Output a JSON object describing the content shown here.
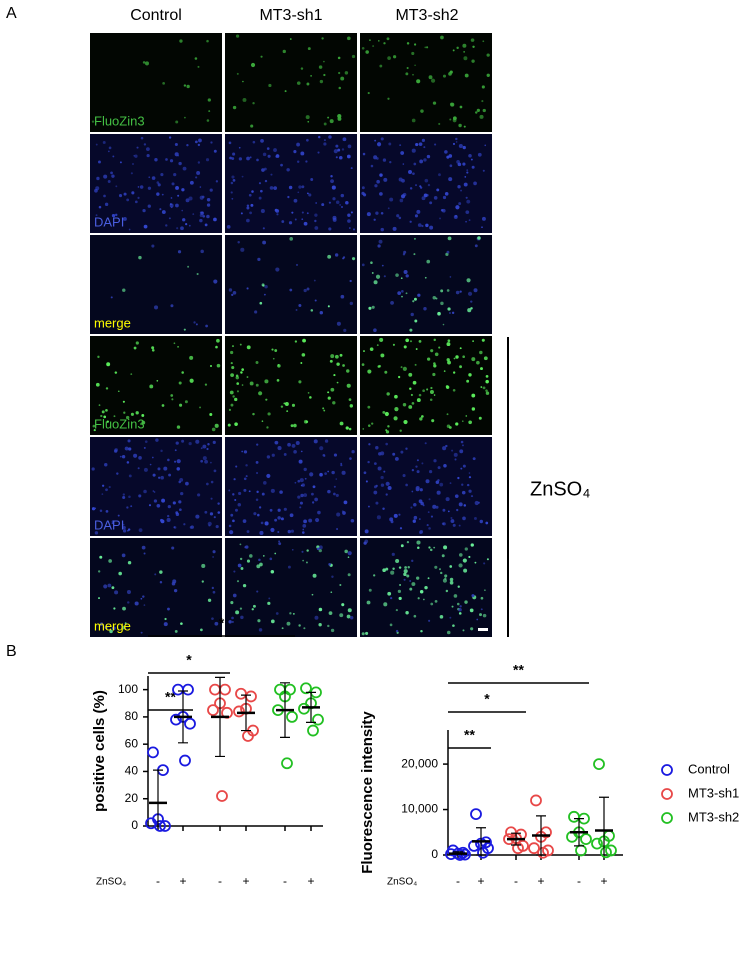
{
  "panel_a": {
    "letter": "A",
    "columns": [
      "Control",
      "MT3-sh1",
      "MT3-sh2"
    ],
    "rows": [
      "FluoZin3",
      "DAPI",
      "merge",
      "FluoZin3",
      "DAPI",
      "merge"
    ],
    "treatment": "ZnSO₄"
  },
  "panel_b": {
    "letter": "B"
  },
  "chart_data": [
    {
      "type": "dot",
      "y_label": "positive cells (%)",
      "x_row_label": "ZnSO₄",
      "categories": [
        "-",
        "+",
        "-",
        "+",
        "-",
        "+"
      ],
      "ylim": [
        0,
        110
      ],
      "yticks": [
        0,
        20,
        40,
        60,
        80,
        100
      ],
      "significance": [
        "**",
        "*",
        "*"
      ],
      "series": [
        {
          "name": "Control",
          "color": "#1a1ae0",
          "values": [
            [
              54,
              41,
              5,
              2,
              0,
              0
            ],
            [
              100,
              100,
              80,
              78,
              75,
              48
            ],
            null,
            null,
            null,
            null
          ],
          "mean": [
            17,
            80,
            null,
            null,
            null,
            null
          ],
          "sd": [
            24,
            19,
            null,
            null,
            null,
            null
          ]
        },
        {
          "name": "MT3-sh1",
          "color": "#e84848",
          "values": [
            null,
            null,
            [
              100,
              100,
              90,
              85,
              83,
              22
            ],
            [
              97,
              95,
              86,
              84,
              70,
              66
            ],
            null,
            null
          ],
          "mean": [
            null,
            null,
            80,
            83,
            null,
            null
          ],
          "sd": [
            null,
            null,
            29,
            13,
            null,
            null
          ]
        },
        {
          "name": "MT3-sh2",
          "color": "#22c022",
          "values": [
            null,
            null,
            null,
            null,
            [
              100,
              100,
              95,
              85,
              80,
              46
            ],
            [
              101,
              98,
              90,
              86,
              78,
              70
            ]
          ],
          "mean": [
            null,
            null,
            null,
            null,
            85,
            87
          ],
          "sd": [
            null,
            null,
            null,
            null,
            20,
            11
          ]
        }
      ]
    },
    {
      "type": "dot",
      "y_label": "Fluorescence intensity",
      "x_row_label": "ZnSO₄",
      "categories": [
        "-",
        "+",
        "-",
        "+",
        "-",
        "+"
      ],
      "ylim": [
        0,
        27500
      ],
      "yticks": [
        0,
        {
          "value": 10000,
          "label": "10,000"
        },
        {
          "value": 20000,
          "label": "20,000"
        }
      ],
      "significance": [
        "**",
        "*",
        "**"
      ],
      "legend": "right",
      "series": [
        {
          "name": "Control",
          "color": "#1a1ae0",
          "values": [
            [
              1000,
              500,
              300,
              200,
              100,
              0
            ],
            [
              9000,
              2800,
              2500,
              2000,
              1500,
              500
            ],
            null,
            null,
            null,
            null
          ],
          "mean": [
            300,
            3000,
            null,
            null,
            null,
            null
          ],
          "sd": [
            400,
            3000,
            null,
            null,
            null,
            null
          ]
        },
        {
          "name": "MT3-sh1",
          "color": "#e84848",
          "values": [
            null,
            null,
            [
              5000,
              4500,
              3700,
              3500,
              2000,
              1500
            ],
            [
              12000,
              5000,
              4000,
              1500,
              1000,
              500
            ],
            null,
            null
          ],
          "mean": [
            null,
            null,
            3500,
            4300,
            null,
            null
          ],
          "sd": [
            null,
            null,
            1300,
            4300,
            null,
            null
          ]
        },
        {
          "name": "MT3-sh2",
          "color": "#22c022",
          "values": [
            null,
            null,
            null,
            null,
            [
              8400,
              8000,
              5000,
              4000,
              3500,
              1000
            ],
            [
              20000,
              4200,
              3000,
              2500,
              1000,
              600
            ]
          ],
          "mean": [
            null,
            null,
            null,
            null,
            5000,
            5400
          ],
          "sd": [
            null,
            null,
            null,
            null,
            3000,
            7300
          ]
        }
      ]
    }
  ]
}
